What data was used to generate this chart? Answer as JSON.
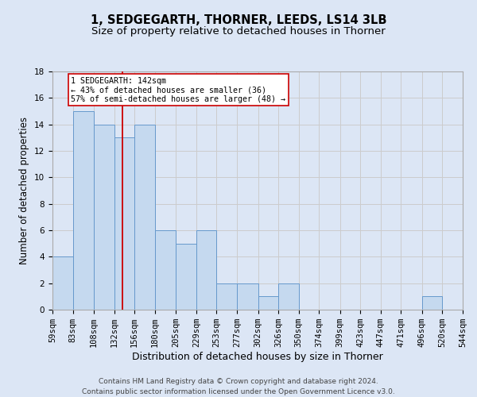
{
  "title_line1": "1, SEDGEGARTH, THORNER, LEEDS, LS14 3LB",
  "title_line2": "Size of property relative to detached houses in Thorner",
  "xlabel": "Distribution of detached houses by size in Thorner",
  "ylabel": "Number of detached properties",
  "footer_line1": "Contains HM Land Registry data © Crown copyright and database right 2024.",
  "footer_line2": "Contains public sector information licensed under the Open Government Licence v3.0.",
  "bins": [
    59,
    83,
    108,
    132,
    156,
    180,
    205,
    229,
    253,
    277,
    302,
    326,
    350,
    374,
    399,
    423,
    447,
    471,
    496,
    520,
    544
  ],
  "counts": [
    4,
    15,
    14,
    13,
    14,
    6,
    5,
    6,
    2,
    2,
    1,
    2,
    0,
    0,
    0,
    0,
    0,
    0,
    1,
    0
  ],
  "bar_color": "#c5d9ef",
  "bar_edge_color": "#6699cc",
  "vline_x": 142,
  "vline_color": "#cc0000",
  "annotation_text": "1 SEDGEGARTH: 142sqm\n← 43% of detached houses are smaller (36)\n57% of semi-detached houses are larger (48) →",
  "annotation_box_color": "#ffffff",
  "annotation_box_edge": "#cc0000",
  "ylim": [
    0,
    18
  ],
  "yticks": [
    0,
    2,
    4,
    6,
    8,
    10,
    12,
    14,
    16,
    18
  ],
  "grid_color": "#cccccc",
  "background_color": "#dce6f5",
  "title_fontsize": 10.5,
  "subtitle_fontsize": 9.5,
  "axis_label_fontsize": 8.5,
  "tick_fontsize": 7.5,
  "footer_fontsize": 6.5
}
